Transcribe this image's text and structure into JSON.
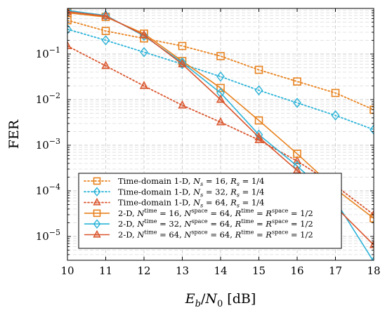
{
  "chart_data": {
    "type": "line",
    "title": "",
    "xlabel": "E_b/N_0 [dB]",
    "ylabel": "FER",
    "xlim": [
      10,
      18
    ],
    "ylim": [
      3e-06,
      1
    ],
    "yscale": "log",
    "grid": true,
    "legend_placement": "bottom-right",
    "x_ticks": [
      "10",
      "11",
      "12",
      "13",
      "14",
      "15",
      "16",
      "17",
      "18"
    ],
    "y_ticks": [
      {
        "value": 0.1,
        "base": "10",
        "exp": "−1"
      },
      {
        "value": 0.01,
        "base": "10",
        "exp": "−2"
      },
      {
        "value": 0.001,
        "base": "10",
        "exp": "−3"
      },
      {
        "value": 0.0001,
        "base": "10",
        "exp": "−4"
      },
      {
        "value": 1e-05,
        "base": "10",
        "exp": "−5"
      }
    ],
    "series": [
      {
        "name": "Time-domain 1-D, N_s = 16, R_s = 1/4",
        "legend": [
          {
            "t": "Time-domain 1-D, "
          },
          {
            "t": "N",
            "i": true
          },
          {
            "t": "s",
            "i": true,
            "sub": true
          },
          {
            "t": " = 16, "
          },
          {
            "t": "R",
            "i": true
          },
          {
            "t": "s",
            "i": true,
            "sub": true
          },
          {
            "t": " = 1/4"
          }
        ],
        "color": "#e8821e",
        "dash": "dotted",
        "marker": "square",
        "x": [
          10,
          11,
          12,
          13,
          14,
          15,
          16,
          17,
          18
        ],
        "y": [
          0.55,
          0.32,
          0.22,
          0.15,
          0.09,
          0.045,
          0.025,
          0.014,
          0.006
        ]
      },
      {
        "name": "Time-domain 1-D, N_s = 32, R_s = 1/4",
        "legend": [
          {
            "t": "Time-domain 1-D, "
          },
          {
            "t": "N",
            "i": true
          },
          {
            "t": "s",
            "i": true,
            "sub": true
          },
          {
            "t": " = 32, "
          },
          {
            "t": "R",
            "i": true
          },
          {
            "t": "s",
            "i": true,
            "sub": true
          },
          {
            "t": " = 1/4"
          }
        ],
        "color": "#2bb3d8",
        "dash": "dotted",
        "marker": "diamond",
        "x": [
          10,
          11,
          12,
          13,
          14,
          15,
          16,
          17,
          18
        ],
        "y": [
          0.35,
          0.2,
          0.11,
          0.06,
          0.032,
          0.016,
          0.0085,
          0.0045,
          0.0022
        ]
      },
      {
        "name": "Time-domain 1-D, N_s = 64, R_s = 1/4",
        "legend": [
          {
            "t": "Time-domain 1-D, "
          },
          {
            "t": "N",
            "i": true
          },
          {
            "t": "s",
            "i": true,
            "sub": true
          },
          {
            "t": " = 64, "
          },
          {
            "t": "R",
            "i": true
          },
          {
            "t": "s",
            "i": true,
            "sub": true
          },
          {
            "t": " = 1/4"
          }
        ],
        "color": "#d9542b",
        "dash": "dotted",
        "marker": "triangle",
        "x": [
          10,
          11,
          12,
          13,
          14,
          15,
          16,
          17,
          18
        ],
        "y": [
          0.15,
          0.055,
          0.02,
          0.0075,
          0.0032,
          0.0013,
          0.00045,
          0.00013,
          3e-05
        ]
      },
      {
        "name": "2-D, N^time = 16, N^space = 64, R^time = R^space = 1/2",
        "legend": [
          {
            "t": "2-D, "
          },
          {
            "t": "N",
            "i": true
          },
          {
            "t": "time",
            "sup": true
          },
          {
            "t": " = 16, "
          },
          {
            "t": "N",
            "i": true
          },
          {
            "t": "space",
            "sup": true
          },
          {
            "t": " = 64, "
          },
          {
            "t": "R",
            "i": true
          },
          {
            "t": "time",
            "sup": true
          },
          {
            "t": " = "
          },
          {
            "t": "R",
            "i": true
          },
          {
            "t": "space",
            "sup": true
          },
          {
            "t": " = 1/2"
          }
        ],
        "color": "#e8821e",
        "dash": "solid",
        "marker": "square",
        "x": [
          10,
          11,
          12,
          13,
          14,
          15,
          16,
          17,
          18
        ],
        "y": [
          0.8,
          0.65,
          0.28,
          0.07,
          0.018,
          0.0035,
          0.00065,
          0.00011,
          2.5e-05
        ]
      },
      {
        "name": "2-D, N^time = 32, N^space = 64, R^time = R^space = 1/2",
        "legend": [
          {
            "t": "2-D, "
          },
          {
            "t": "N",
            "i": true
          },
          {
            "t": "time",
            "sup": true
          },
          {
            "t": " = 32, "
          },
          {
            "t": "N",
            "i": true
          },
          {
            "t": "space",
            "sup": true
          },
          {
            "t": " = 64, "
          },
          {
            "t": "R",
            "i": true
          },
          {
            "t": "time",
            "sup": true
          },
          {
            "t": " = "
          },
          {
            "t": "R",
            "i": true
          },
          {
            "t": "space",
            "sup": true
          },
          {
            "t": " = 1/2"
          }
        ],
        "color": "#2bb3d8",
        "dash": "solid",
        "marker": "diamond",
        "x": [
          10,
          11,
          12,
          13,
          14,
          15,
          16,
          17,
          18
        ],
        "y": [
          0.9,
          0.7,
          0.25,
          0.065,
          0.014,
          0.0017,
          0.00035,
          6e-05,
          2.8e-06
        ]
      },
      {
        "name": "2-D, N^time = 64, N^space = 64, R^time = R^space = 1/2",
        "legend": [
          {
            "t": "2-D, "
          },
          {
            "t": "N",
            "i": true
          },
          {
            "t": "time",
            "sup": true
          },
          {
            "t": " = 64, "
          },
          {
            "t": "N",
            "i": true
          },
          {
            "t": "space",
            "sup": true
          },
          {
            "t": " = 64, "
          },
          {
            "t": "R",
            "i": true
          },
          {
            "t": "time",
            "sup": true
          },
          {
            "t": " = "
          },
          {
            "t": "R",
            "i": true
          },
          {
            "t": "space",
            "sup": true
          },
          {
            "t": " = 1/2"
          }
        ],
        "color": "#d9542b",
        "dash": "solid",
        "marker": "triangle",
        "x": [
          10,
          11,
          12,
          13,
          14,
          15,
          16,
          17,
          18
        ],
        "y": [
          0.85,
          0.68,
          0.26,
          0.06,
          0.01,
          0.0015,
          0.00028,
          4.5e-05,
          6.5e-06
        ]
      }
    ]
  }
}
